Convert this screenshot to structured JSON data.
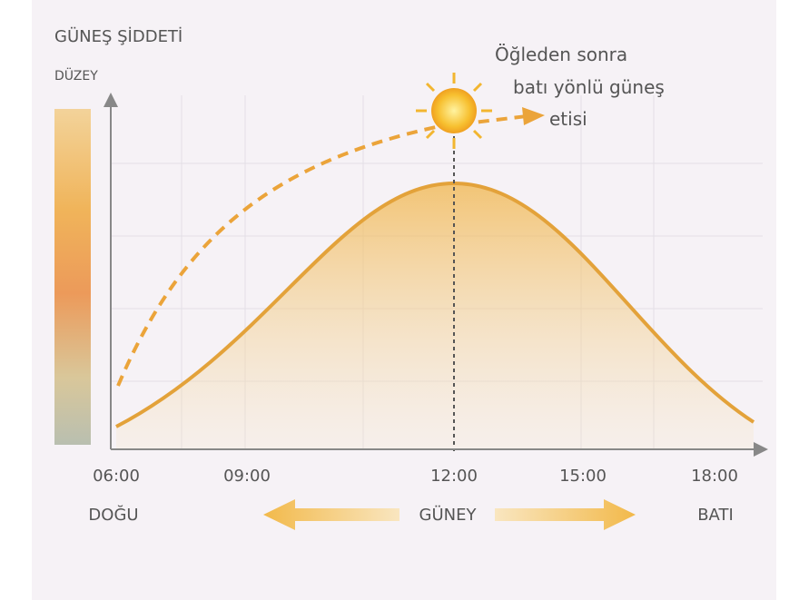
{
  "header": {
    "title": "GÜNEŞ ŞİDDETİ",
    "y_label": "DÜZEY"
  },
  "annotation": {
    "lines": [
      "Öğleden sonra",
      "batı yönlü güneş",
      "etisi"
    ]
  },
  "x_labels": [
    "06:00",
    "09:00",
    "12:00",
    "15:00",
    "18:00"
  ],
  "directions": {
    "left": "DOĞU",
    "center": "GÜNEY",
    "right": "BATI"
  }
}
